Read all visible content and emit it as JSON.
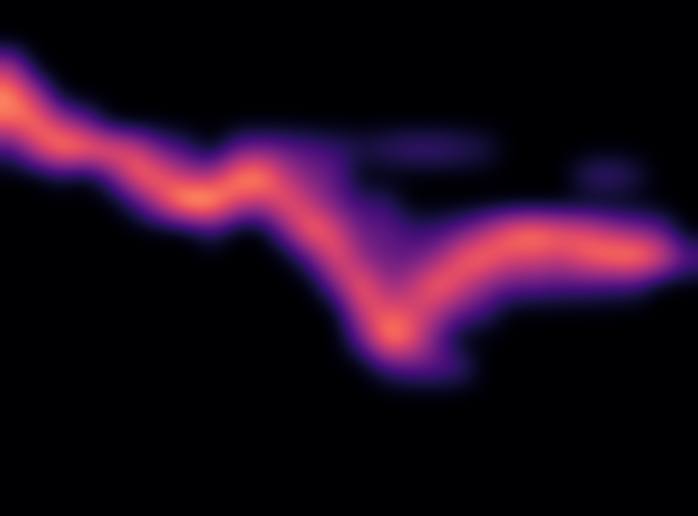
{
  "chart_data": {
    "type": "heatmap",
    "color": "magma",
    "tick_labels": false,
    "vlim": [
      0,
      1
    ],
    "cells": [
      [
        0,
        0,
        0,
        0,
        0,
        0,
        0,
        0,
        0,
        0,
        0,
        0,
        0,
        0,
        0,
        0,
        0,
        0,
        0,
        0,
        0,
        0,
        0,
        0,
        0,
        0,
        0,
        0
      ],
      [
        0,
        0,
        0,
        0,
        0,
        0,
        0,
        0,
        0,
        0,
        0,
        0,
        0,
        0,
        0,
        0,
        0,
        0,
        0,
        0,
        0,
        0,
        0,
        0,
        0,
        0,
        0,
        0
      ],
      [
        0.5,
        0,
        0,
        0,
        0,
        0,
        0,
        0,
        0,
        0,
        0,
        0,
        0,
        0,
        0,
        0,
        0,
        0,
        0,
        0,
        0,
        0,
        0,
        0,
        0,
        0,
        0,
        0
      ],
      [
        0.8,
        0.5,
        0,
        0,
        0,
        0,
        0,
        0,
        0,
        0,
        0,
        0,
        0,
        0,
        0,
        0,
        0,
        0,
        0,
        0,
        0,
        0,
        0,
        0,
        0,
        0,
        0,
        0
      ],
      [
        0.7,
        0.75,
        0.5,
        0.3,
        0,
        0,
        0,
        0,
        0,
        0,
        0,
        0,
        0,
        0,
        0,
        0,
        0,
        0,
        0,
        0,
        0,
        0,
        0,
        0,
        0,
        0,
        0,
        0
      ],
      [
        0.2,
        0.6,
        0.85,
        0.8,
        0.75,
        0.6,
        0.3,
        0.2,
        0,
        0.3,
        0.35,
        0.3,
        0.25,
        0.2,
        0.15,
        0.2,
        0.25,
        0.25,
        0.2,
        0.15,
        0,
        0,
        0,
        0,
        0,
        0,
        0,
        0
      ],
      [
        0,
        0,
        0.1,
        0,
        0.3,
        0.75,
        0.7,
        0.5,
        0.5,
        0.8,
        0.85,
        0.5,
        0.35,
        0.3,
        0,
        0,
        0,
        0,
        0,
        0,
        0,
        0,
        0,
        0.2,
        0.25,
        0.15,
        0,
        0
      ],
      [
        0,
        0,
        0,
        0,
        0,
        0.2,
        0.6,
        0.95,
        0.9,
        0.6,
        0.5,
        0.7,
        0.5,
        0.3,
        0.2,
        0.2,
        0,
        0,
        0,
        0,
        0,
        0,
        0,
        0,
        0,
        0,
        0,
        0
      ],
      [
        0,
        0,
        0,
        0,
        0,
        0,
        0,
        0,
        0.2,
        0,
        0,
        0.4,
        0.8,
        0.6,
        0.3,
        0.3,
        0.2,
        0.2,
        0.3,
        0.5,
        0.75,
        0.8,
        0.7,
        0.65,
        0.5,
        0.4,
        0.3,
        0
      ],
      [
        0,
        0,
        0,
        0,
        0,
        0,
        0,
        0,
        0,
        0,
        0,
        0,
        0.3,
        0.7,
        0.4,
        0.3,
        0.3,
        0.4,
        0.7,
        0.75,
        0.6,
        0.6,
        0.55,
        0.7,
        0.8,
        0.85,
        0.7,
        0.3
      ],
      [
        0,
        0,
        0,
        0,
        0,
        0,
        0,
        0,
        0,
        0,
        0,
        0,
        0,
        0.4,
        0.75,
        0.4,
        0.5,
        0.75,
        0.6,
        0.4,
        0.3,
        0.3,
        0.25,
        0.25,
        0.2,
        0.2,
        0,
        0
      ],
      [
        0,
        0,
        0,
        0,
        0,
        0,
        0,
        0,
        0,
        0,
        0,
        0,
        0,
        0,
        0.6,
        0.65,
        0.6,
        0.5,
        0.3,
        0.2,
        0,
        0,
        0,
        0,
        0,
        0,
        0,
        0
      ],
      [
        0,
        0,
        0,
        0,
        0,
        0,
        0,
        0,
        0,
        0,
        0,
        0,
        0,
        0,
        0.3,
        0.85,
        0.7,
        0.3,
        0,
        0,
        0,
        0,
        0,
        0,
        0,
        0,
        0,
        0
      ],
      [
        0,
        0,
        0,
        0,
        0,
        0,
        0,
        0,
        0,
        0,
        0,
        0,
        0,
        0,
        0,
        0.2,
        0.3,
        0.3,
        0.25,
        0,
        0,
        0,
        0,
        0,
        0,
        0,
        0,
        0
      ],
      [
        0,
        0,
        0,
        0,
        0,
        0,
        0,
        0,
        0,
        0,
        0,
        0,
        0,
        0,
        0,
        0,
        0,
        0,
        0,
        0,
        0,
        0,
        0,
        0,
        0,
        0,
        0,
        0
      ],
      [
        0,
        0,
        0,
        0,
        0,
        0,
        0,
        0,
        0,
        0,
        0,
        0,
        0,
        0,
        0,
        0,
        0,
        0,
        0,
        0,
        0,
        0,
        0,
        0,
        0,
        0,
        0,
        0
      ],
      [
        0,
        0,
        0,
        0,
        0,
        0,
        0,
        0,
        0,
        0,
        0,
        0,
        0,
        0,
        0,
        0,
        0,
        0,
        0,
        0,
        0,
        0,
        0,
        0,
        0,
        0,
        0,
        0
      ],
      [
        0,
        0,
        0,
        0,
        0,
        0,
        0,
        0,
        0,
        0,
        0,
        0,
        0,
        0,
        0,
        0,
        0,
        0,
        0,
        0,
        0,
        0,
        0,
        0,
        0,
        0,
        0,
        0
      ],
      [
        0,
        0,
        0,
        0,
        0,
        0,
        0,
        0,
        0,
        0,
        0,
        0,
        0,
        0,
        0,
        0,
        0,
        0,
        0,
        0,
        0,
        0,
        0,
        0,
        0,
        0,
        0,
        0
      ]
    ]
  }
}
